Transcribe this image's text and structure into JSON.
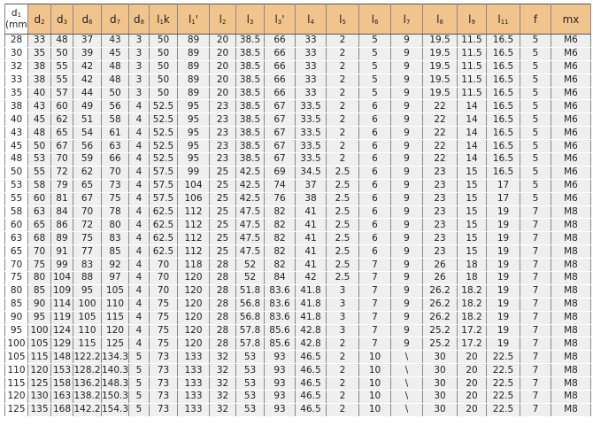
{
  "table": {
    "headers": [
      {
        "main": "d",
        "sub": "1",
        "unit": "(mm)"
      },
      {
        "main": "d",
        "sub": "2"
      },
      {
        "main": "d",
        "sub": "3"
      },
      {
        "main": "d",
        "sub": "6"
      },
      {
        "main": "d",
        "sub": "7"
      },
      {
        "main": "d",
        "sub": "8"
      },
      {
        "main": "l",
        "sub": "1",
        "suffix": "k"
      },
      {
        "main": "l",
        "sub": "1",
        "suffix": "'"
      },
      {
        "main": "l",
        "sub": "2"
      },
      {
        "main": "l",
        "sub": "3"
      },
      {
        "main": "l",
        "sub": "3",
        "suffix": "'"
      },
      {
        "main": "l",
        "sub": "4"
      },
      {
        "main": "l",
        "sub": "5"
      },
      {
        "main": "l",
        "sub": "6"
      },
      {
        "main": "l",
        "sub": "7"
      },
      {
        "main": "l",
        "sub": "8"
      },
      {
        "main": "l",
        "sub": "9"
      },
      {
        "main": "l",
        "sub": "11"
      },
      {
        "main": "f"
      },
      {
        "main": "mx"
      }
    ],
    "rows": [
      [
        "28",
        "33",
        "48",
        "37",
        "43",
        "3",
        "50",
        "89",
        "20",
        "38.5",
        "66",
        "33",
        "2",
        "5",
        "9",
        "19.5",
        "11.5",
        "16.5",
        "5",
        "M6"
      ],
      [
        "30",
        "35",
        "50",
        "39",
        "45",
        "3",
        "50",
        "89",
        "20",
        "38.5",
        "66",
        "33",
        "2",
        "5",
        "9",
        "19.5",
        "11.5",
        "16.5",
        "5",
        "M6"
      ],
      [
        "32",
        "38",
        "55",
        "42",
        "48",
        "3",
        "50",
        "89",
        "20",
        "38.5",
        "66",
        "33",
        "2",
        "5",
        "9",
        "19.5",
        "11.5",
        "16.5",
        "5",
        "M6"
      ],
      [
        "33",
        "38",
        "55",
        "42",
        "48",
        "3",
        "50",
        "89",
        "20",
        "38.5",
        "66",
        "33",
        "2",
        "5",
        "9",
        "19.5",
        "11.5",
        "16.5",
        "5",
        "M6"
      ],
      [
        "35",
        "40",
        "57",
        "44",
        "50",
        "3",
        "50",
        "89",
        "20",
        "38.5",
        "66",
        "33",
        "2",
        "5",
        "9",
        "19.5",
        "11.5",
        "16.5",
        "5",
        "M6"
      ],
      [
        "38",
        "43",
        "60",
        "49",
        "56",
        "4",
        "52.5",
        "95",
        "23",
        "38.5",
        "67",
        "33.5",
        "2",
        "6",
        "9",
        "22",
        "14",
        "16.5",
        "5",
        "M6"
      ],
      [
        "40",
        "45",
        "62",
        "51",
        "58",
        "4",
        "52.5",
        "95",
        "23",
        "38.5",
        "67",
        "33.5",
        "2",
        "6",
        "9",
        "22",
        "14",
        "16.5",
        "5",
        "M6"
      ],
      [
        "43",
        "48",
        "65",
        "54",
        "61",
        "4",
        "52.5",
        "95",
        "23",
        "38.5",
        "67",
        "33.5",
        "2",
        "6",
        "9",
        "22",
        "14",
        "16.5",
        "5",
        "M6"
      ],
      [
        "45",
        "50",
        "67",
        "56",
        "63",
        "4",
        "52.5",
        "95",
        "23",
        "38.5",
        "67",
        "33.5",
        "2",
        "6",
        "9",
        "22",
        "14",
        "16.5",
        "5",
        "M6"
      ],
      [
        "48",
        "53",
        "70",
        "59",
        "66",
        "4",
        "52.5",
        "95",
        "23",
        "38.5",
        "67",
        "33.5",
        "2",
        "6",
        "9",
        "22",
        "14",
        "16.5",
        "5",
        "M6"
      ],
      [
        "50",
        "55",
        "72",
        "62",
        "70",
        "4",
        "57.5",
        "99",
        "25",
        "42.5",
        "69",
        "34.5",
        "2.5",
        "6",
        "9",
        "23",
        "15",
        "16.5",
        "5",
        "M6"
      ],
      [
        "53",
        "58",
        "79",
        "65",
        "73",
        "4",
        "57.5",
        "104",
        "25",
        "42.5",
        "74",
        "37",
        "2.5",
        "6",
        "9",
        "23",
        "15",
        "17",
        "5",
        "M6"
      ],
      [
        "55",
        "60",
        "81",
        "67",
        "75",
        "4",
        "57.5",
        "106",
        "25",
        "42.5",
        "76",
        "38",
        "2.5",
        "6",
        "9",
        "23",
        "15",
        "17",
        "5",
        "M6"
      ],
      [
        "58",
        "63",
        "84",
        "70",
        "78",
        "4",
        "62.5",
        "112",
        "25",
        "47.5",
        "82",
        "41",
        "2.5",
        "6",
        "9",
        "23",
        "15",
        "19",
        "7",
        "M8"
      ],
      [
        "60",
        "65",
        "86",
        "72",
        "80",
        "4",
        "62.5",
        "112",
        "25",
        "47.5",
        "82",
        "41",
        "2.5",
        "6",
        "9",
        "23",
        "15",
        "19",
        "7",
        "M8"
      ],
      [
        "63",
        "68",
        "89",
        "75",
        "83",
        "4",
        "62.5",
        "112",
        "25",
        "47.5",
        "82",
        "41",
        "2.5",
        "6",
        "9",
        "23",
        "15",
        "19",
        "7",
        "M8"
      ],
      [
        "65",
        "70",
        "91",
        "77",
        "85",
        "4",
        "62.5",
        "112",
        "25",
        "47.5",
        "82",
        "41",
        "2.5",
        "6",
        "9",
        "23",
        "15",
        "19",
        "7",
        "M8"
      ],
      [
        "70",
        "75",
        "99",
        "83",
        "92",
        "4",
        "70",
        "118",
        "28",
        "52",
        "82",
        "41",
        "2.5",
        "7",
        "9",
        "26",
        "18",
        "19",
        "7",
        "M8"
      ],
      [
        "75",
        "80",
        "104",
        "88",
        "97",
        "4",
        "70",
        "120",
        "28",
        "52",
        "84",
        "42",
        "2.5",
        "7",
        "9",
        "26",
        "18",
        "19",
        "7",
        "M8"
      ],
      [
        "80",
        "85",
        "109",
        "95",
        "105",
        "4",
        "70",
        "120",
        "28",
        "51.8",
        "83.6",
        "41.8",
        "3",
        "7",
        "9",
        "26.2",
        "18.2",
        "19",
        "7",
        "M8"
      ],
      [
        "85",
        "90",
        "114",
        "100",
        "110",
        "4",
        "75",
        "120",
        "28",
        "56.8",
        "83.6",
        "41.8",
        "3",
        "7",
        "9",
        "26.2",
        "18.2",
        "19",
        "7",
        "M8"
      ],
      [
        "90",
        "95",
        "119",
        "105",
        "115",
        "4",
        "75",
        "120",
        "28",
        "56.8",
        "83.6",
        "41.8",
        "3",
        "7",
        "9",
        "26.2",
        "18.2",
        "19",
        "7",
        "M8"
      ],
      [
        "95",
        "100",
        "124",
        "110",
        "120",
        "4",
        "75",
        "120",
        "28",
        "57.8",
        "85.6",
        "42.8",
        "3",
        "7",
        "9",
        "25.2",
        "17.2",
        "19",
        "7",
        "M8"
      ],
      [
        "100",
        "105",
        "129",
        "115",
        "125",
        "4",
        "75",
        "120",
        "28",
        "57.8",
        "85.6",
        "42.8",
        "2",
        "7",
        "9",
        "25.2",
        "17.2",
        "19",
        "7",
        "M8"
      ],
      [
        "105",
        "115",
        "148",
        "122.2",
        "134.3",
        "5",
        "73",
        "133",
        "32",
        "53",
        "93",
        "46.5",
        "2",
        "10",
        "\\",
        "30",
        "20",
        "22.5",
        "7",
        "M8"
      ],
      [
        "110",
        "120",
        "153",
        "128.2",
        "140.3",
        "5",
        "73",
        "133",
        "32",
        "53",
        "93",
        "46.5",
        "2",
        "10",
        "\\",
        "30",
        "20",
        "22.5",
        "7",
        "M8"
      ],
      [
        "115",
        "125",
        "158",
        "136.2",
        "148.3",
        "5",
        "73",
        "133",
        "32",
        "53",
        "93",
        "46.5",
        "2",
        "10",
        "\\",
        "30",
        "20",
        "22.5",
        "7",
        "M8"
      ],
      [
        "120",
        "130",
        "163",
        "138.2",
        "150.3",
        "5",
        "73",
        "133",
        "32",
        "53",
        "93",
        "46.5",
        "2",
        "10",
        "\\",
        "30",
        "20",
        "22.5",
        "7",
        "M8"
      ],
      [
        "125",
        "135",
        "168",
        "142.2",
        "154.3",
        "5",
        "73",
        "133",
        "32",
        "53",
        "93",
        "46.5",
        "2",
        "10",
        "\\",
        "30",
        "20",
        "22.5",
        "7",
        "M8"
      ]
    ]
  },
  "colors": {
    "header_bg": "#f1c48d",
    "cell_bg": "#efefef",
    "border": "#555555"
  }
}
